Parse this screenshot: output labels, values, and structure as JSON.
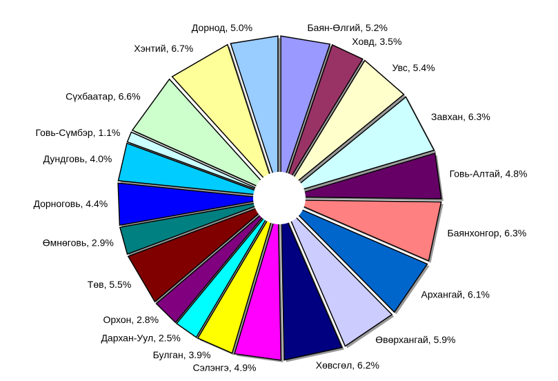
{
  "chart_data": {
    "type": "pie",
    "values": [
      5.2,
      3.5,
      5.4,
      6.3,
      4.8,
      6.3,
      6.1,
      5.9,
      6.2,
      4.9,
      3.9,
      2.5,
      2.8,
      5.5,
      2.9,
      4.4,
      4.0,
      1.1,
      6.6,
      6.7,
      5.0
    ],
    "value_labels": [
      "Баян-Өлгий, 5.2%",
      "Ховд, 3.5%",
      "Увс, 5.4%",
      "Завхан, 6.3%",
      "Говь-Алтай, 4.8%",
      "Баянхонгор, 6.3%",
      "Архангай, 6.1%",
      "Өвөрхангай, 5.9%",
      "Хөвсгөл, 6.2%",
      "Сэлэнгэ, 4.9%",
      "Булган, 3.9%",
      "Дархан-Уул, 2.5%",
      "Орхон, 2.8%",
      "Төв, 5.5%",
      "Өмнөговь, 2.9%",
      "Дорноговь, 4.4%",
      "Дундговь, 4.0%",
      "Говь-Сүмбэр, 1.1%",
      "Сүхбаатар, 6.6%",
      "Хэнтий, 6.7%",
      "Дорнод, 5.0%"
    ],
    "colors": [
      "#9999ff",
      "#993366",
      "#ffffcc",
      "#ccffff",
      "#660066",
      "#ff8080",
      "#0066cc",
      "#ccccff",
      "#000080",
      "#ff00ff",
      "#ffff00",
      "#00ffff",
      "#800080",
      "#800000",
      "#008080",
      "#0000ff",
      "#00ccff",
      "#ccffff",
      "#ccffcc",
      "#ffff99",
      "#99ccff"
    ]
  }
}
